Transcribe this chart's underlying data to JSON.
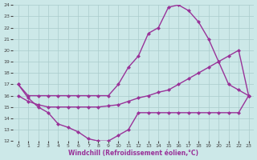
{
  "background_color": "#cce8e8",
  "grid_color": "#aacccc",
  "line_color": "#993399",
  "markersize": 2.5,
  "linewidth": 1.0,
  "xlabel": "Windchill (Refroidissement éolien,°C)",
  "xlim": [
    -0.5,
    23.5
  ],
  "ylim": [
    12,
    24
  ],
  "yticks": [
    12,
    13,
    14,
    15,
    16,
    17,
    18,
    19,
    20,
    21,
    22,
    23,
    24
  ],
  "xticks": [
    0,
    1,
    2,
    3,
    4,
    5,
    6,
    7,
    8,
    9,
    10,
    11,
    12,
    13,
    14,
    15,
    16,
    17,
    18,
    19,
    20,
    21,
    22,
    23
  ],
  "curve_top_x": [
    0,
    1,
    2,
    3,
    4,
    5,
    6,
    7,
    8,
    9,
    10,
    11,
    12,
    13,
    14,
    15,
    16,
    17,
    18,
    19,
    20,
    21,
    22,
    23
  ],
  "curve_top_y": [
    17,
    16,
    16,
    16,
    16,
    16,
    16,
    16,
    16,
    16,
    17,
    18.5,
    19.5,
    21.5,
    22.0,
    23.8,
    24.0,
    23.5,
    22.5,
    21.0,
    19.0,
    17.0,
    16.5,
    16.0
  ],
  "curve_mid_x": [
    0,
    1,
    2,
    3,
    4,
    5,
    6,
    7,
    8,
    9,
    10,
    11,
    12,
    13,
    14,
    15,
    16,
    17,
    18,
    19,
    20,
    21,
    22,
    23
  ],
  "curve_mid_y": [
    16.0,
    15.5,
    15.2,
    15.0,
    15.0,
    15.0,
    15.0,
    15.0,
    15.0,
    15.1,
    15.2,
    15.5,
    15.8,
    16.0,
    16.3,
    16.5,
    17.0,
    17.5,
    18.0,
    18.5,
    19.0,
    19.5,
    20.0,
    16.0
  ],
  "curve_bot_x": [
    0,
    1,
    2,
    3,
    4,
    5,
    6,
    7,
    8,
    9,
    10,
    11,
    12,
    13,
    14,
    15,
    16,
    17,
    18,
    19,
    20,
    21,
    22,
    23
  ],
  "curve_bot_y": [
    17,
    15.8,
    15.0,
    14.5,
    13.5,
    13.2,
    12.8,
    12.2,
    12.0,
    12.0,
    12.5,
    13.0,
    14.5,
    14.5,
    14.5,
    14.5,
    14.5,
    14.5,
    14.5,
    14.5,
    14.5,
    14.5,
    14.5,
    16.0
  ]
}
